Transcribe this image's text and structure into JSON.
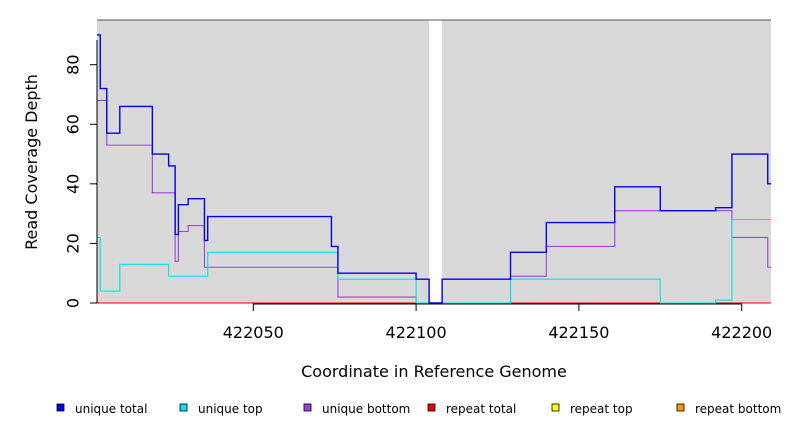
{
  "chart_data": {
    "type": "line",
    "xlabel": "Coordinate in Reference Genome",
    "ylabel": "Read Coverage Depth",
    "xlim": [
      422002,
      422209
    ],
    "ylim": [
      0,
      95
    ],
    "x_ticks": [
      422050,
      422100,
      422150,
      422200
    ],
    "y_ticks": [
      0,
      20,
      40,
      60,
      80
    ],
    "shaded_regions": [
      [
        422002,
        422104
      ],
      [
        422108,
        422209
      ]
    ],
    "legend_position": "bottom",
    "series": [
      {
        "name": "unique total",
        "color": "#0000ee",
        "step": [
          [
            422002,
            90
          ],
          [
            422003,
            72
          ],
          [
            422005,
            57
          ],
          [
            422009,
            66
          ],
          [
            422019,
            50
          ],
          [
            422024,
            46
          ],
          [
            422026,
            23
          ],
          [
            422027,
            33
          ],
          [
            422030,
            35
          ],
          [
            422035,
            21
          ],
          [
            422036,
            29
          ],
          [
            422074,
            19
          ],
          [
            422076,
            10
          ],
          [
            422100,
            8
          ],
          [
            422104,
            0
          ],
          [
            422108,
            8
          ],
          [
            422129,
            17
          ],
          [
            422140,
            27
          ],
          [
            422161,
            39
          ],
          [
            422175,
            31
          ],
          [
            422192,
            32
          ],
          [
            422197,
            50
          ],
          [
            422208,
            40
          ],
          [
            422209,
            40
          ]
        ]
      },
      {
        "name": "unique top",
        "color": "#00e5e5",
        "step": [
          [
            422002,
            22
          ],
          [
            422003,
            4
          ],
          [
            422009,
            13
          ],
          [
            422024,
            9
          ],
          [
            422036,
            17
          ],
          [
            422076,
            8
          ],
          [
            422100,
            0
          ],
          [
            422108,
            0
          ],
          [
            422129,
            8
          ],
          [
            422175,
            0
          ],
          [
            422192,
            1
          ],
          [
            422197,
            28
          ],
          [
            422209,
            28
          ]
        ]
      },
      {
        "name": "unique bottom",
        "color": "#a040e0",
        "step": [
          [
            422002,
            68
          ],
          [
            422005,
            53
          ],
          [
            422019,
            37
          ],
          [
            422026,
            14
          ],
          [
            422027,
            24
          ],
          [
            422030,
            26
          ],
          [
            422035,
            12
          ],
          [
            422076,
            2
          ],
          [
            422100,
            0
          ],
          [
            422108,
            0
          ],
          [
            422129,
            9
          ],
          [
            422140,
            19
          ],
          [
            422161,
            31
          ],
          [
            422197,
            22
          ],
          [
            422208,
            12
          ],
          [
            422209,
            12
          ]
        ]
      },
      {
        "name": "repeat total",
        "color": "#ee0000",
        "step": [
          [
            422002,
            0
          ],
          [
            422209,
            0
          ]
        ]
      },
      {
        "name": "repeat top",
        "color": "#ffff00",
        "step": [
          [
            422002,
            0
          ],
          [
            422209,
            0
          ]
        ]
      },
      {
        "name": "repeat bottom",
        "color": "#ff9900",
        "step": [
          [
            422002,
            0
          ],
          [
            422209,
            0
          ]
        ]
      }
    ]
  }
}
